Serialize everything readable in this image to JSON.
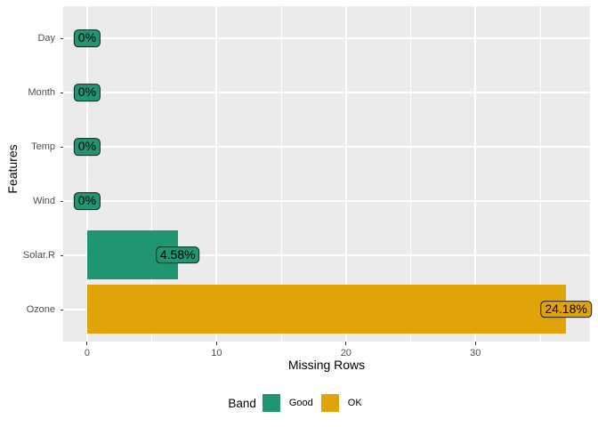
{
  "chart_data": {
    "type": "bar",
    "orientation": "horizontal",
    "title": "",
    "xlabel": "Missing Rows",
    "ylabel": "Features",
    "categories": [
      "Day",
      "Month",
      "Temp",
      "Wind",
      "Solar.R",
      "Ozone"
    ],
    "values": [
      0,
      0,
      0,
      0,
      7,
      37
    ],
    "percent_labels": [
      "0%",
      "0%",
      "0%",
      "0%",
      "4.58%",
      "24.18%"
    ],
    "bands": [
      "Good",
      "Good",
      "Good",
      "Good",
      "Good",
      "OK"
    ],
    "band_colors": {
      "Good": "#1F9571",
      "OK": "#E1A408"
    },
    "x_ticks": [
      0,
      10,
      20,
      30
    ],
    "x_tick_labels": [
      "0",
      "10",
      "20",
      "30"
    ],
    "x_minor_ticks": [
      5,
      15,
      25,
      35
    ],
    "xlim": [
      -1.85,
      38.85
    ],
    "grid": true,
    "legend": {
      "title": "Band",
      "position": "bottom",
      "entries": [
        {
          "label": "Good",
          "color": "#1F9571"
        },
        {
          "label": "OK",
          "color": "#E1A408"
        }
      ]
    }
  },
  "colors": {
    "panel_bg": "#EBEBEB",
    "gridline": "#FFFFFF",
    "tick_text": "#4D4D4D",
    "axis_title_text": "#000000",
    "label_border": "#1A1A1A"
  }
}
